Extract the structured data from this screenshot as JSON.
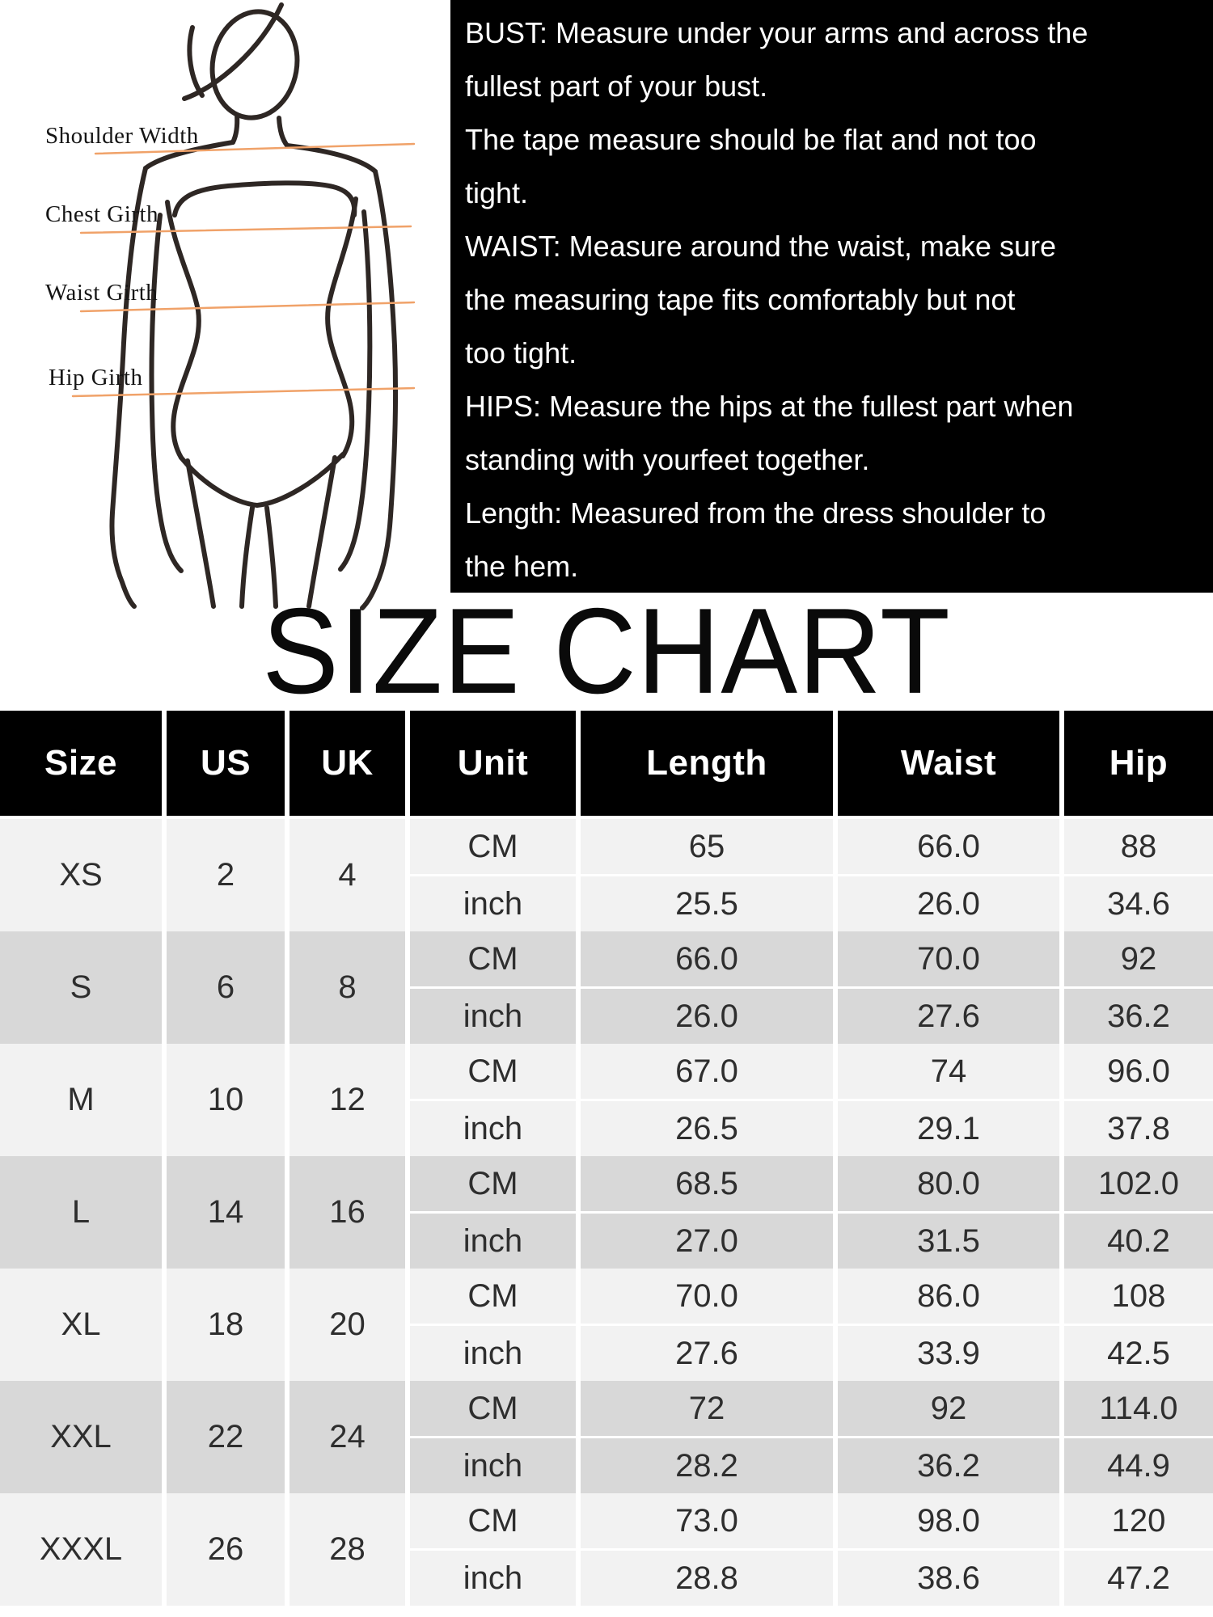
{
  "title": "SIZE CHART",
  "colors": {
    "accent_line": "#F0A269",
    "instructions_bg": "#000000",
    "instructions_text": "#FFFFFF",
    "header_bg": "#000000",
    "header_text": "#FFFFFF",
    "band_light": "#F2F2F2",
    "band_dark": "#D8D8D8"
  },
  "diagram": {
    "labels": [
      "Shoulder Width",
      "Chest Girth",
      "Waist Girth",
      "Hip Girth"
    ]
  },
  "instructions": {
    "lines": [
      "BUST: Measure under your arms and across the",
      "fullest part of your bust.",
      "The tape measure should be flat and not too",
      "tight.",
      "WAIST: Measure around the waist, make sure",
      "the measuring tape fits comfortably but not",
      "too tight.",
      "HIPS: Measure the hips at the fullest part when",
      "standing with yourfeet together.",
      "Length: Measured from the dress shoulder to",
      "the hem."
    ]
  },
  "size_table": {
    "columns": [
      "Size",
      "US",
      "UK",
      "Unit",
      "Length",
      "Waist",
      "Hip"
    ],
    "unit_rows": [
      "CM",
      "inch"
    ],
    "rows": [
      {
        "size": "XS",
        "us": "2",
        "uk": "4",
        "cm": [
          "65",
          "66.0",
          "88"
        ],
        "inch": [
          "25.5",
          "26.0",
          "34.6"
        ]
      },
      {
        "size": "S",
        "us": "6",
        "uk": "8",
        "cm": [
          "66.0",
          "70.0",
          "92"
        ],
        "inch": [
          "26.0",
          "27.6",
          "36.2"
        ]
      },
      {
        "size": "M",
        "us": "10",
        "uk": "12",
        "cm": [
          "67.0",
          "74",
          "96.0"
        ],
        "inch": [
          "26.5",
          "29.1",
          "37.8"
        ]
      },
      {
        "size": "L",
        "us": "14",
        "uk": "16",
        "cm": [
          "68.5",
          "80.0",
          "102.0"
        ],
        "inch": [
          "27.0",
          "31.5",
          "40.2"
        ]
      },
      {
        "size": "XL",
        "us": "18",
        "uk": "20",
        "cm": [
          "70.0",
          "86.0",
          "108"
        ],
        "inch": [
          "27.6",
          "33.9",
          "42.5"
        ]
      },
      {
        "size": "XXL",
        "us": "22",
        "uk": "24",
        "cm": [
          "72",
          "92",
          "114.0"
        ],
        "inch": [
          "28.2",
          "36.2",
          "44.9"
        ]
      },
      {
        "size": "XXXL",
        "us": "26",
        "uk": "28",
        "cm": [
          "73.0",
          "98.0",
          "120"
        ],
        "inch": [
          "28.8",
          "38.6",
          "47.2"
        ]
      }
    ]
  },
  "chart_data": {
    "type": "table",
    "title": "SIZE CHART",
    "columns": [
      "Size",
      "US",
      "UK",
      "Unit",
      "Length",
      "Waist",
      "Hip"
    ],
    "rows": [
      [
        "XS",
        "2",
        "4",
        "CM",
        "65",
        "66.0",
        "88"
      ],
      [
        "XS",
        "2",
        "4",
        "inch",
        "25.5",
        "26.0",
        "34.6"
      ],
      [
        "S",
        "6",
        "8",
        "CM",
        "66.0",
        "70.0",
        "92"
      ],
      [
        "S",
        "6",
        "8",
        "inch",
        "26.0",
        "27.6",
        "36.2"
      ],
      [
        "M",
        "10",
        "12",
        "CM",
        "67.0",
        "74",
        "96.0"
      ],
      [
        "M",
        "10",
        "12",
        "inch",
        "26.5",
        "29.1",
        "37.8"
      ],
      [
        "L",
        "14",
        "16",
        "CM",
        "68.5",
        "80.0",
        "102.0"
      ],
      [
        "L",
        "14",
        "16",
        "inch",
        "27.0",
        "31.5",
        "40.2"
      ],
      [
        "XL",
        "18",
        "20",
        "CM",
        "70.0",
        "86.0",
        "108"
      ],
      [
        "XL",
        "18",
        "20",
        "inch",
        "27.6",
        "33.9",
        "42.5"
      ],
      [
        "XXL",
        "22",
        "24",
        "CM",
        "72",
        "92",
        "114.0"
      ],
      [
        "XXL",
        "22",
        "24",
        "inch",
        "28.2",
        "36.2",
        "44.9"
      ],
      [
        "XXXL",
        "26",
        "28",
        "CM",
        "73.0",
        "98.0",
        "120"
      ],
      [
        "XXXL",
        "26",
        "28",
        "inch",
        "28.8",
        "38.6",
        "47.2"
      ]
    ]
  }
}
